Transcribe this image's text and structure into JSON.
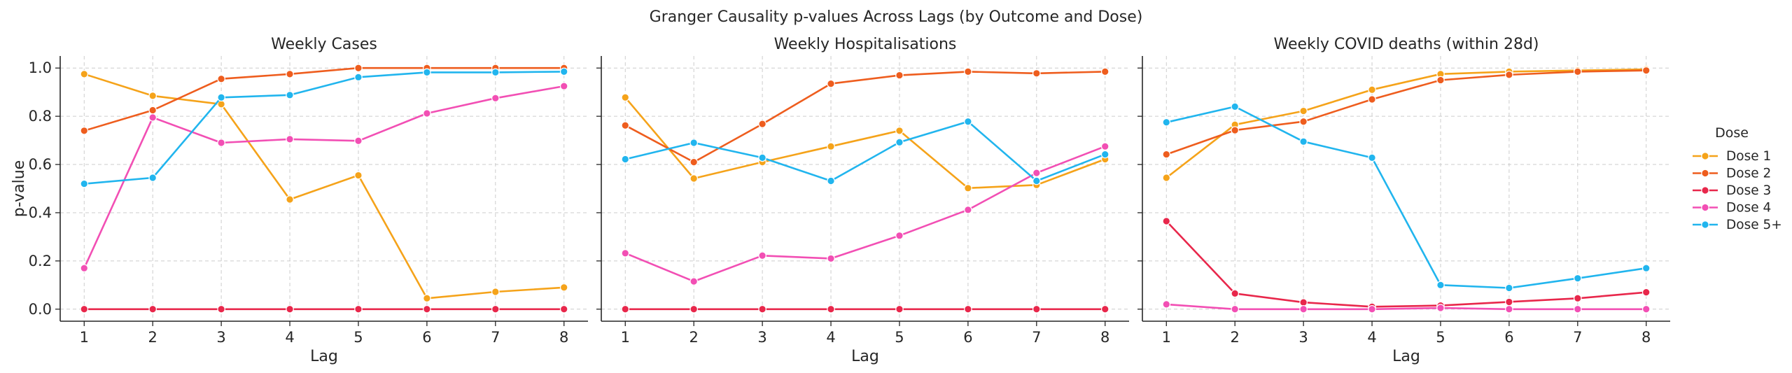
{
  "figure": {
    "title": "Granger Causality p-values Across Lags (by Outcome and Dose)"
  },
  "chart_data": [
    {
      "type": "line",
      "title": "Weekly Cases",
      "xlabel": "Lag",
      "ylabel": "p-value",
      "x": [
        1,
        2,
        3,
        4,
        5,
        6,
        7,
        8
      ],
      "ylim": [
        -0.05,
        1.05
      ],
      "yticks": [
        0.0,
        0.2,
        0.4,
        0.6,
        0.8,
        1.0
      ],
      "grid": true,
      "series": [
        {
          "name": "Dose 1",
          "values": [
            0.975,
            0.885,
            0.85,
            0.455,
            0.555,
            0.045,
            0.072,
            0.09
          ]
        },
        {
          "name": "Dose 2",
          "values": [
            0.74,
            0.825,
            0.955,
            0.975,
            1.0,
            1.0,
            1.0,
            1.0
          ]
        },
        {
          "name": "Dose 3",
          "values": [
            0.0,
            0.0,
            0.0,
            0.0,
            0.0,
            0.0,
            0.0,
            0.0
          ]
        },
        {
          "name": "Dose 4",
          "values": [
            0.17,
            0.795,
            0.69,
            0.705,
            0.698,
            0.812,
            0.875,
            0.925
          ]
        },
        {
          "name": "Dose 5+",
          "values": [
            0.52,
            0.545,
            0.878,
            0.888,
            0.962,
            0.982,
            0.982,
            0.985
          ]
        }
      ]
    },
    {
      "type": "line",
      "title": "Weekly Hospitalisations",
      "xlabel": "Lag",
      "x": [
        1,
        2,
        3,
        4,
        5,
        6,
        7,
        8
      ],
      "ylim": [
        -0.05,
        1.05
      ],
      "grid": true,
      "series": [
        {
          "name": "Dose 1",
          "values": [
            0.878,
            0.542,
            0.61,
            0.675,
            0.74,
            0.502,
            0.515,
            0.622
          ]
        },
        {
          "name": "Dose 2",
          "values": [
            0.762,
            0.61,
            0.768,
            0.935,
            0.97,
            0.985,
            0.978,
            0.985
          ]
        },
        {
          "name": "Dose 3",
          "values": [
            0.0,
            0.0,
            0.0,
            0.0,
            0.0,
            0.0,
            0.0,
            0.0
          ]
        },
        {
          "name": "Dose 4",
          "values": [
            0.232,
            0.115,
            0.222,
            0.21,
            0.305,
            0.412,
            0.565,
            0.675
          ]
        },
        {
          "name": "Dose 5+",
          "values": [
            0.622,
            0.69,
            0.628,
            0.532,
            0.692,
            0.778,
            0.532,
            0.642
          ]
        }
      ]
    },
    {
      "type": "line",
      "title": "Weekly COVID deaths (within 28d)",
      "xlabel": "Lag",
      "x": [
        1,
        2,
        3,
        4,
        5,
        6,
        7,
        8
      ],
      "ylim": [
        -0.05,
        1.05
      ],
      "grid": true,
      "series": [
        {
          "name": "Dose 1",
          "values": [
            0.545,
            0.765,
            0.822,
            0.91,
            0.975,
            0.985,
            0.99,
            0.995
          ]
        },
        {
          "name": "Dose 2",
          "values": [
            0.642,
            0.742,
            0.778,
            0.87,
            0.95,
            0.972,
            0.985,
            0.99
          ]
        },
        {
          "name": "Dose 3",
          "values": [
            0.365,
            0.065,
            0.028,
            0.01,
            0.015,
            0.03,
            0.045,
            0.07
          ]
        },
        {
          "name": "Dose 4",
          "values": [
            0.02,
            0.0,
            0.0,
            0.0,
            0.005,
            0.0,
            0.0,
            0.0
          ]
        },
        {
          "name": "Dose 5+",
          "values": [
            0.775,
            0.84,
            0.695,
            0.628,
            0.1,
            0.088,
            0.128,
            0.17
          ]
        }
      ]
    }
  ],
  "legend": {
    "title": "Dose",
    "placement": "right",
    "items": [
      {
        "name": "Dose 1",
        "color": "#f5a31a"
      },
      {
        "name": "Dose 2",
        "color": "#ee5d1e"
      },
      {
        "name": "Dose 3",
        "color": "#e8274b"
      },
      {
        "name": "Dose 4",
        "color": "#f24fb4"
      },
      {
        "name": "Dose 5+",
        "color": "#21b5ee"
      }
    ]
  }
}
